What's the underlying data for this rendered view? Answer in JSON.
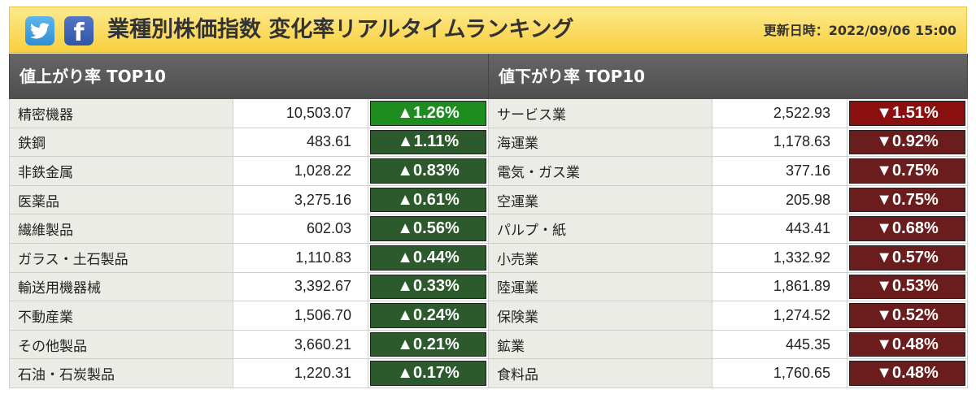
{
  "header": {
    "title": "業種別株価指数 変化率リアルタイムランキング",
    "updated": "更新日時：2022/09/06 15:00",
    "twitter_icon": "twitter-icon",
    "facebook_icon": "facebook-icon"
  },
  "colors": {
    "up_strong": "#1e8c1e",
    "up_weak": "#2c5a2c",
    "down_strong": "#8a0f0f",
    "down_weak": "#6b1c1c"
  },
  "gainers": {
    "heading": "値上がり率 TOP10",
    "rows": [
      {
        "name": "精密機器",
        "value": "10,503.07",
        "rate": "▲1.26%"
      },
      {
        "name": "鉄鋼",
        "value": "483.61",
        "rate": "▲1.11%"
      },
      {
        "name": "非鉄金属",
        "value": "1,028.22",
        "rate": "▲0.83%"
      },
      {
        "name": "医薬品",
        "value": "3,275.16",
        "rate": "▲0.61%"
      },
      {
        "name": "繊維製品",
        "value": "602.03",
        "rate": "▲0.56%"
      },
      {
        "name": "ガラス・土石製品",
        "value": "1,110.83",
        "rate": "▲0.44%"
      },
      {
        "name": "輸送用機器械",
        "value": "3,392.67",
        "rate": "▲0.33%"
      },
      {
        "name": "不動産業",
        "value": "1,506.70",
        "rate": "▲0.24%"
      },
      {
        "name": "その他製品",
        "value": "3,660.21",
        "rate": "▲0.21%"
      },
      {
        "name": "石油・石炭製品",
        "value": "1,220.31",
        "rate": "▲0.17%"
      }
    ]
  },
  "losers": {
    "heading": "値下がり率 TOP10",
    "rows": [
      {
        "name": "サービス業",
        "value": "2,522.93",
        "rate": "▼1.51%"
      },
      {
        "name": "海運業",
        "value": "1,178.63",
        "rate": "▼0.92%"
      },
      {
        "name": "電気・ガス業",
        "value": "377.16",
        "rate": "▼0.75%"
      },
      {
        "name": "空運業",
        "value": "205.98",
        "rate": "▼0.75%"
      },
      {
        "name": "パルプ・紙",
        "value": "443.41",
        "rate": "▼0.68%"
      },
      {
        "name": "小売業",
        "value": "1,332.92",
        "rate": "▼0.57%"
      },
      {
        "name": "陸運業",
        "value": "1,861.89",
        "rate": "▼0.53%"
      },
      {
        "name": "保険業",
        "value": "1,274.52",
        "rate": "▼0.52%"
      },
      {
        "name": "鉱業",
        "value": "445.35",
        "rate": "▼0.48%"
      },
      {
        "name": "食料品",
        "value": "1,760.65",
        "rate": "▼0.48%"
      }
    ]
  }
}
